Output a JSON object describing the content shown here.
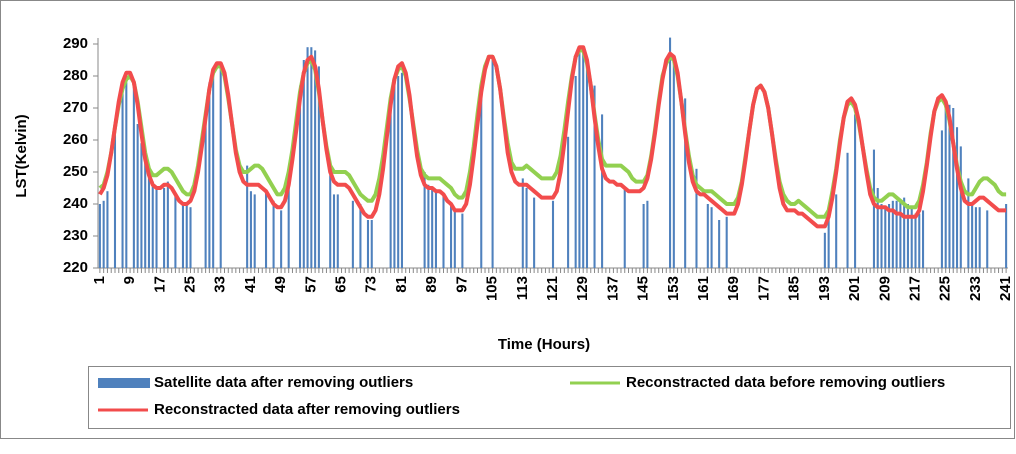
{
  "chart_data": {
    "type": "bar-line",
    "y_label": "LST(Kelvin)",
    "x_label": "Time (Hours)",
    "ylim": [
      220,
      290
    ],
    "yticks": [
      220,
      230,
      240,
      250,
      260,
      270,
      280,
      290
    ],
    "xlim": [
      0.5,
      241.5
    ],
    "xticks": [
      1,
      9,
      17,
      25,
      33,
      41,
      49,
      57,
      65,
      73,
      81,
      89,
      97,
      105,
      113,
      121,
      129,
      137,
      145,
      153,
      161,
      169,
      177,
      185,
      193,
      201,
      209,
      217,
      225,
      233,
      241
    ],
    "grid": false,
    "legend": "bottom",
    "x": [
      1,
      2,
      3,
      4,
      5,
      6,
      7,
      8,
      9,
      10,
      11,
      12,
      13,
      14,
      15,
      16,
      17,
      18,
      19,
      20,
      21,
      22,
      23,
      24,
      25,
      26,
      27,
      28,
      29,
      30,
      31,
      32,
      33,
      34,
      35,
      36,
      37,
      38,
      39,
      40,
      41,
      42,
      43,
      44,
      45,
      46,
      47,
      48,
      49,
      50,
      51,
      52,
      53,
      54,
      55,
      56,
      57,
      58,
      59,
      60,
      61,
      62,
      63,
      64,
      65,
      66,
      67,
      68,
      69,
      70,
      71,
      72,
      73,
      74,
      75,
      76,
      77,
      78,
      79,
      80,
      81,
      82,
      83,
      84,
      85,
      86,
      87,
      88,
      89,
      90,
      91,
      92,
      93,
      94,
      95,
      96,
      97,
      98,
      99,
      100,
      101,
      102,
      103,
      104,
      105,
      106,
      107,
      108,
      109,
      110,
      111,
      112,
      113,
      114,
      115,
      116,
      117,
      118,
      119,
      120,
      121,
      122,
      123,
      124,
      125,
      126,
      127,
      128,
      129,
      130,
      131,
      132,
      133,
      134,
      135,
      136,
      137,
      138,
      139,
      140,
      141,
      142,
      143,
      144,
      145,
      146,
      147,
      148,
      149,
      150,
      151,
      152,
      153,
      154,
      155,
      156,
      157,
      158,
      159,
      160,
      161,
      162,
      163,
      164,
      165,
      166,
      167,
      168,
      169,
      170,
      171,
      172,
      173,
      174,
      175,
      176,
      177,
      178,
      179,
      180,
      181,
      182,
      183,
      184,
      185,
      186,
      187,
      188,
      189,
      190,
      191,
      192,
      193,
      194,
      195,
      196,
      197,
      198,
      199,
      200,
      201,
      202,
      203,
      204,
      205,
      206,
      207,
      208,
      209,
      210,
      211,
      212,
      213,
      214,
      215,
      216,
      217,
      218,
      219,
      220,
      221,
      222,
      223,
      224,
      225,
      226,
      227,
      228,
      229,
      230,
      231,
      232,
      233,
      234,
      235,
      236,
      237,
      238,
      239,
      240,
      241
    ],
    "series": [
      {
        "name": "Satellite data after removing outliers",
        "kind": "bar",
        "color": "#4f81bd",
        "values": [
          240,
          241,
          244,
          null,
          263,
          null,
          276,
          278,
          null,
          277,
          265,
          259,
          254,
          251,
          247,
          245,
          null,
          245,
          247,
          null,
          243,
          null,
          240,
          240,
          239,
          null,
          null,
          null,
          269,
          278,
          282,
          null,
          283,
          null,
          null,
          null,
          null,
          null,
          null,
          252,
          244,
          243,
          null,
          null,
          244,
          null,
          241,
          null,
          238,
          null,
          245,
          null,
          null,
          277,
          285,
          289,
          289,
          288,
          283,
          null,
          null,
          249,
          243,
          243,
          null,
          null,
          null,
          241,
          null,
          240,
          null,
          235,
          235,
          null,
          null,
          null,
          null,
          270,
          278,
          280,
          281,
          null,
          null,
          null,
          null,
          null,
          250,
          246,
          245,
          244,
          null,
          243,
          null,
          240,
          238,
          null,
          237,
          null,
          null,
          null,
          null,
          277,
          null,
          null,
          286,
          null,
          null,
          null,
          null,
          null,
          null,
          null,
          248,
          245,
          null,
          242,
          null,
          null,
          null,
          null,
          241,
          null,
          null,
          null,
          261,
          null,
          280,
          288,
          289,
          286,
          null,
          277,
          null,
          268,
          null,
          null,
          null,
          null,
          null,
          245,
          null,
          null,
          null,
          null,
          240,
          241,
          null,
          null,
          null,
          null,
          null,
          292,
          285,
          null,
          null,
          273,
          null,
          null,
          251,
          null,
          null,
          240,
          239,
          null,
          235,
          null,
          236,
          null,
          null,
          null,
          null,
          null,
          null,
          null,
          null,
          null,
          null,
          null,
          null,
          null,
          null,
          null,
          null,
          null,
          null,
          null,
          null,
          null,
          null,
          null,
          null,
          null,
          231,
          236,
          null,
          243,
          null,
          null,
          256,
          null,
          268,
          null,
          null,
          null,
          null,
          257,
          245,
          240,
          239,
          240,
          241,
          241,
          241,
          242,
          240,
          239,
          237,
          237,
          238,
          null,
          null,
          null,
          null,
          263,
          271,
          271,
          270,
          264,
          258,
          null,
          248,
          240,
          239,
          239,
          null,
          238,
          null,
          null,
          null,
          null,
          240
        ]
      },
      {
        "name": "Reconstracted data before removing outliers",
        "kind": "line",
        "color": "#92d050",
        "values": [
          245,
          246,
          250,
          256,
          264,
          271,
          276,
          279,
          280,
          278,
          272,
          264,
          256,
          251,
          249,
          249,
          250,
          251,
          251,
          250,
          248,
          246,
          244,
          243,
          243,
          246,
          252,
          260,
          268,
          276,
          281,
          283,
          283,
          280,
          273,
          265,
          257,
          252,
          250,
          250,
          251,
          252,
          252,
          251,
          249,
          247,
          245,
          243,
          243,
          245,
          250,
          257,
          266,
          275,
          281,
          284,
          285,
          282,
          275,
          266,
          258,
          252,
          250,
          250,
          250,
          250,
          249,
          247,
          245,
          243,
          242,
          241,
          241,
          243,
          248,
          255,
          264,
          273,
          279,
          282,
          283,
          280,
          273,
          265,
          257,
          251,
          249,
          248,
          248,
          248,
          248,
          247,
          246,
          245,
          243,
          242,
          242,
          244,
          250,
          258,
          268,
          277,
          283,
          286,
          286,
          283,
          276,
          267,
          259,
          253,
          251,
          251,
          251,
          252,
          251,
          250,
          249,
          248,
          248,
          248,
          248,
          250,
          255,
          263,
          272,
          280,
          286,
          288,
          288,
          284,
          277,
          268,
          260,
          254,
          252,
          252,
          252,
          252,
          252,
          251,
          250,
          248,
          247,
          247,
          247,
          249,
          255,
          263,
          272,
          280,
          284,
          286,
          285,
          280,
          272,
          263,
          255,
          249,
          246,
          245,
          244,
          244,
          244,
          243,
          242,
          241,
          240,
          240,
          240,
          242,
          247,
          255,
          263,
          271,
          276,
          277,
          275,
          270,
          262,
          254,
          247,
          243,
          241,
          240,
          240,
          241,
          240,
          239,
          238,
          237,
          236,
          236,
          236,
          238,
          244,
          251,
          260,
          267,
          271,
          272,
          270,
          265,
          258,
          251,
          245,
          242,
          241,
          241,
          242,
          243,
          243,
          242,
          241,
          240,
          239,
          239,
          239,
          241,
          246,
          253,
          262,
          269,
          272,
          273,
          271,
          266,
          259,
          252,
          247,
          244,
          243,
          243,
          245,
          247,
          248,
          248,
          247,
          246,
          244,
          243,
          243
        ]
      },
      {
        "name": "Reconstracted data after removing outliers",
        "kind": "line",
        "color": "#f24c4c",
        "values": [
          243,
          245,
          249,
          256,
          264,
          272,
          278,
          281,
          281,
          278,
          271,
          262,
          254,
          249,
          246,
          245,
          245,
          246,
          246,
          245,
          243,
          241,
          240,
          240,
          241,
          244,
          250,
          258,
          267,
          276,
          282,
          284,
          284,
          281,
          274,
          265,
          256,
          250,
          247,
          246,
          246,
          246,
          246,
          245,
          244,
          242,
          240,
          239,
          239,
          241,
          246,
          254,
          263,
          273,
          281,
          285,
          286,
          283,
          276,
          266,
          257,
          250,
          247,
          246,
          246,
          246,
          245,
          243,
          241,
          239,
          237,
          236,
          236,
          238,
          243,
          251,
          261,
          271,
          279,
          283,
          284,
          281,
          274,
          264,
          255,
          249,
          246,
          245,
          245,
          244,
          244,
          243,
          241,
          240,
          238,
          238,
          238,
          240,
          246,
          255,
          265,
          275,
          282,
          286,
          286,
          283,
          276,
          266,
          256,
          250,
          247,
          246,
          246,
          246,
          245,
          244,
          243,
          242,
          242,
          242,
          242,
          244,
          250,
          259,
          269,
          279,
          286,
          289,
          289,
          285,
          277,
          267,
          258,
          251,
          248,
          247,
          247,
          246,
          246,
          245,
          244,
          244,
          244,
          244,
          245,
          248,
          254,
          262,
          271,
          279,
          285,
          287,
          286,
          281,
          272,
          262,
          253,
          247,
          244,
          243,
          243,
          242,
          241,
          240,
          239,
          238,
          237,
          237,
          237,
          240,
          246,
          254,
          263,
          271,
          276,
          277,
          275,
          270,
          262,
          253,
          245,
          240,
          238,
          238,
          238,
          237,
          237,
          236,
          235,
          234,
          233,
          233,
          233,
          236,
          242,
          250,
          259,
          267,
          272,
          273,
          271,
          266,
          258,
          250,
          243,
          240,
          239,
          239,
          239,
          238,
          238,
          237,
          237,
          236,
          236,
          236,
          236,
          238,
          244,
          252,
          261,
          269,
          273,
          274,
          272,
          267,
          259,
          251,
          245,
          241,
          240,
          240,
          241,
          242,
          242,
          241,
          240,
          239,
          238,
          238,
          238
        ]
      }
    ]
  }
}
